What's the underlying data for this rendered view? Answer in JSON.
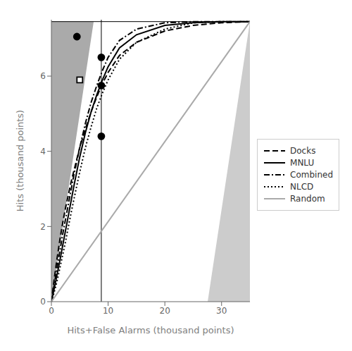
{
  "chart_data": {
    "type": "line",
    "xlabel": "Hits+False Alarms (thousand points)",
    "ylabel": "Hits (thousand points)",
    "xlim": [
      0,
      35
    ],
    "ylim": [
      0,
      7.5
    ],
    "xticks": [
      0,
      10,
      20,
      30
    ],
    "yticks": [
      0,
      2,
      4,
      6
    ],
    "legend": "right",
    "hline": 7.45,
    "vline": 8.8,
    "regions": [
      {
        "x": [
          0,
          7.45
        ],
        "low": [
          0,
          7.45
        ],
        "high": [
          7.45,
          7.45
        ],
        "color": "#aaaaaa"
      },
      {
        "x": [
          27.55,
          35
        ],
        "low": [
          0,
          0
        ],
        "high": [
          0,
          7.45
        ],
        "color": "#cccccc"
      }
    ],
    "series": [
      {
        "name": "Docks",
        "color": "#000000",
        "line_style": "dashed",
        "x": [
          0,
          0.5,
          1.0,
          1.5,
          2.0,
          2.5,
          3.0,
          3.5,
          4.0,
          5.0,
          6.0,
          7.0,
          8.0,
          9.0,
          10.0,
          12.0,
          15.0,
          20.0,
          25.0,
          30.0,
          35.0
        ],
        "values": [
          0,
          0.6,
          1.15,
          1.65,
          2.1,
          2.5,
          2.85,
          3.2,
          3.5,
          4.1,
          4.6,
          5.05,
          5.45,
          5.8,
          6.1,
          6.55,
          6.9,
          7.2,
          7.35,
          7.42,
          7.45
        ]
      },
      {
        "name": "MNLU",
        "color": "#000000",
        "line_style": "solid",
        "x": [
          0,
          0.5,
          1.0,
          1.5,
          2.0,
          2.5,
          3.0,
          4.0,
          5.0,
          6.0,
          7.0,
          8.0,
          9.0,
          10.0,
          12.0,
          15.0,
          20.0,
          25.0,
          30.0,
          35.0
        ],
        "values": [
          0,
          0.35,
          0.72,
          1.1,
          1.5,
          1.9,
          2.3,
          3.1,
          3.85,
          4.5,
          5.05,
          5.5,
          5.9,
          6.25,
          6.75,
          7.1,
          7.35,
          7.42,
          7.45,
          7.45
        ]
      },
      {
        "name": "Combined",
        "color": "#000000",
        "line_style": "dashdot",
        "x": [
          0,
          0.5,
          1.0,
          1.5,
          2.0,
          2.5,
          3.0,
          4.0,
          5.0,
          6.0,
          7.0,
          8.0,
          9.0,
          10.0,
          12.0,
          15.0,
          20.0,
          25.0,
          30.0,
          35.0
        ],
        "values": [
          0,
          0.45,
          0.9,
          1.35,
          1.8,
          2.2,
          2.6,
          3.4,
          4.1,
          4.75,
          5.3,
          5.75,
          6.15,
          6.5,
          6.95,
          7.25,
          7.42,
          7.45,
          7.45,
          7.45
        ]
      },
      {
        "name": "NLCD",
        "color": "#000000",
        "line_style": "dotted",
        "x": [
          0,
          0.5,
          1.0,
          1.5,
          2.0,
          2.5,
          3.0,
          4.0,
          5.0,
          6.0,
          7.0,
          8.0,
          9.0,
          10.0,
          12.0,
          15.0,
          20.0,
          25.0,
          30.0,
          35.0
        ],
        "values": [
          0,
          0.25,
          0.55,
          0.9,
          1.25,
          1.6,
          2.0,
          2.75,
          3.45,
          4.1,
          4.65,
          5.15,
          5.55,
          5.9,
          6.45,
          6.9,
          7.25,
          7.42,
          7.45,
          7.45
        ]
      },
      {
        "name": "Random",
        "color": "#aaaaaa",
        "line_style": "solid",
        "x": [
          0,
          35
        ],
        "values": [
          0,
          7.45
        ]
      },
      {
        "type": "scatter",
        "marker": "circle",
        "color": "#000000",
        "x": [
          4.5,
          8.8,
          8.8,
          8.8
        ],
        "values": [
          7.05,
          5.75,
          6.5,
          4.4
        ]
      },
      {
        "type": "scatter",
        "marker": "square",
        "color": "#000000",
        "x": [
          5.0
        ],
        "values": [
          5.9
        ]
      }
    ]
  }
}
